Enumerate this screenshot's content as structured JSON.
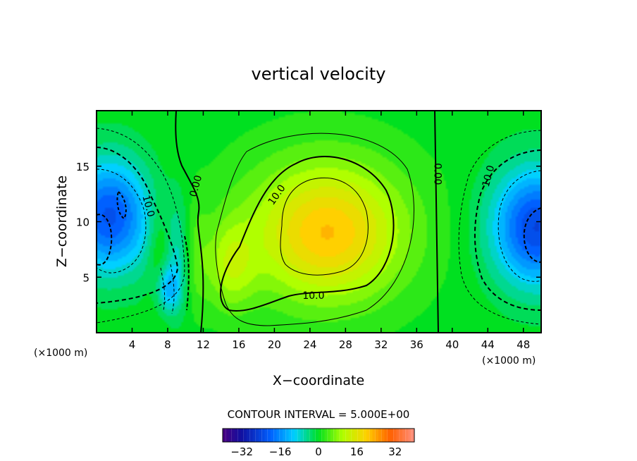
{
  "chart_data": {
    "type": "heatmap",
    "title": "vertical velocity",
    "xlabel": "X−coordinate",
    "ylabel": "Z−coordinate",
    "x_unit_left": "(×1000 m)",
    "x_unit_right": "(×1000 m)",
    "xlim": [
      0,
      50
    ],
    "ylim": [
      0,
      20
    ],
    "x_ticks": [
      4,
      8,
      12,
      16,
      20,
      24,
      28,
      32,
      36,
      40,
      44,
      48
    ],
    "y_ticks": [
      5,
      10,
      15
    ],
    "contour_interval_text": "CONTOUR INTERVAL = 5.000E+00",
    "contour_labels": [
      {
        "text": "0.00",
        "x": 11.2,
        "z": 13.2,
        "angle": -75
      },
      {
        "text": "10.0",
        "x": 5.8,
        "z": 11.4,
        "angle": 75
      },
      {
        "text": "10.0",
        "x": 20.3,
        "z": 12.4,
        "angle": -55
      },
      {
        "text": "10.0",
        "x": 24.4,
        "z": 3.3,
        "angle": 0
      },
      {
        "text": "0.00",
        "x": 38.3,
        "z": 14.3,
        "angle": 90
      },
      {
        "text": "10.0",
        "x": 44.1,
        "z": 14.1,
        "angle": -75
      }
    ],
    "colorbar": {
      "range": [
        -40,
        40
      ],
      "ticks": [
        -32,
        -16,
        0,
        16,
        32
      ],
      "tick_labels": [
        "−32",
        "−16",
        "0",
        "16",
        "32"
      ]
    },
    "field_features": [
      {
        "kind": "updraft",
        "x": 26,
        "z": 9,
        "peak": 19
      },
      {
        "kind": "downdraft",
        "x": 1.5,
        "z": 10.5,
        "peak": -22
      },
      {
        "kind": "downdraft",
        "x": 49.5,
        "z": 9.5,
        "peak": -24
      }
    ]
  }
}
